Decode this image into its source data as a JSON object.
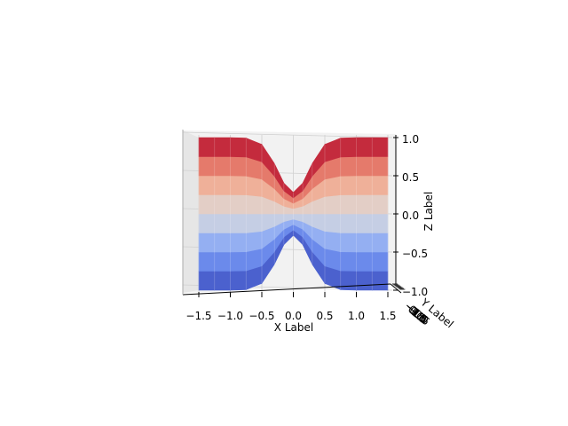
{
  "chart_data": {
    "type": "surface",
    "title": "",
    "xlabel": "X Label",
    "ylabel": "Y Label",
    "zlabel": "Z Label",
    "xlim": [
      -1.5,
      1.5
    ],
    "ylim": [
      -1.5,
      1.5
    ],
    "zlim": [
      -1.0,
      1.0
    ],
    "x_ticks": [
      -1.5,
      -1.0,
      -0.5,
      0.0,
      0.5,
      1.0,
      1.5
    ],
    "x_tick_labels": [
      "−1.5",
      "−1.0",
      "−0.5",
      "0.0",
      "0.5",
      "1.0",
      "1.5"
    ],
    "z_ticks": [
      -1.0,
      -0.5,
      0.0,
      0.5,
      1.0
    ],
    "z_tick_labels": [
      "−1.0",
      "−0.5",
      "0.0",
      "0.5",
      "1.0"
    ],
    "y_tick_labels": [
      "−1.5",
      "−1.0",
      "−0.5",
      "0.0",
      "0.5",
      "1.0",
      "1.5"
    ],
    "colormap": "coolwarm",
    "colormap_stops": [
      "#3b4cc0",
      "#7b9ff9",
      "#dddddd",
      "#f5a182",
      "#b40426"
    ],
    "surface_grid": {
      "x": [
        -1.5,
        -1.25,
        -1.0,
        -0.75,
        -0.5,
        -0.3,
        -0.15,
        0.0,
        0.15,
        0.3,
        0.5,
        0.75,
        1.0,
        1.25,
        1.5
      ],
      "bands": 8
    },
    "grid": true,
    "pane_color": "#f2f2f2"
  }
}
